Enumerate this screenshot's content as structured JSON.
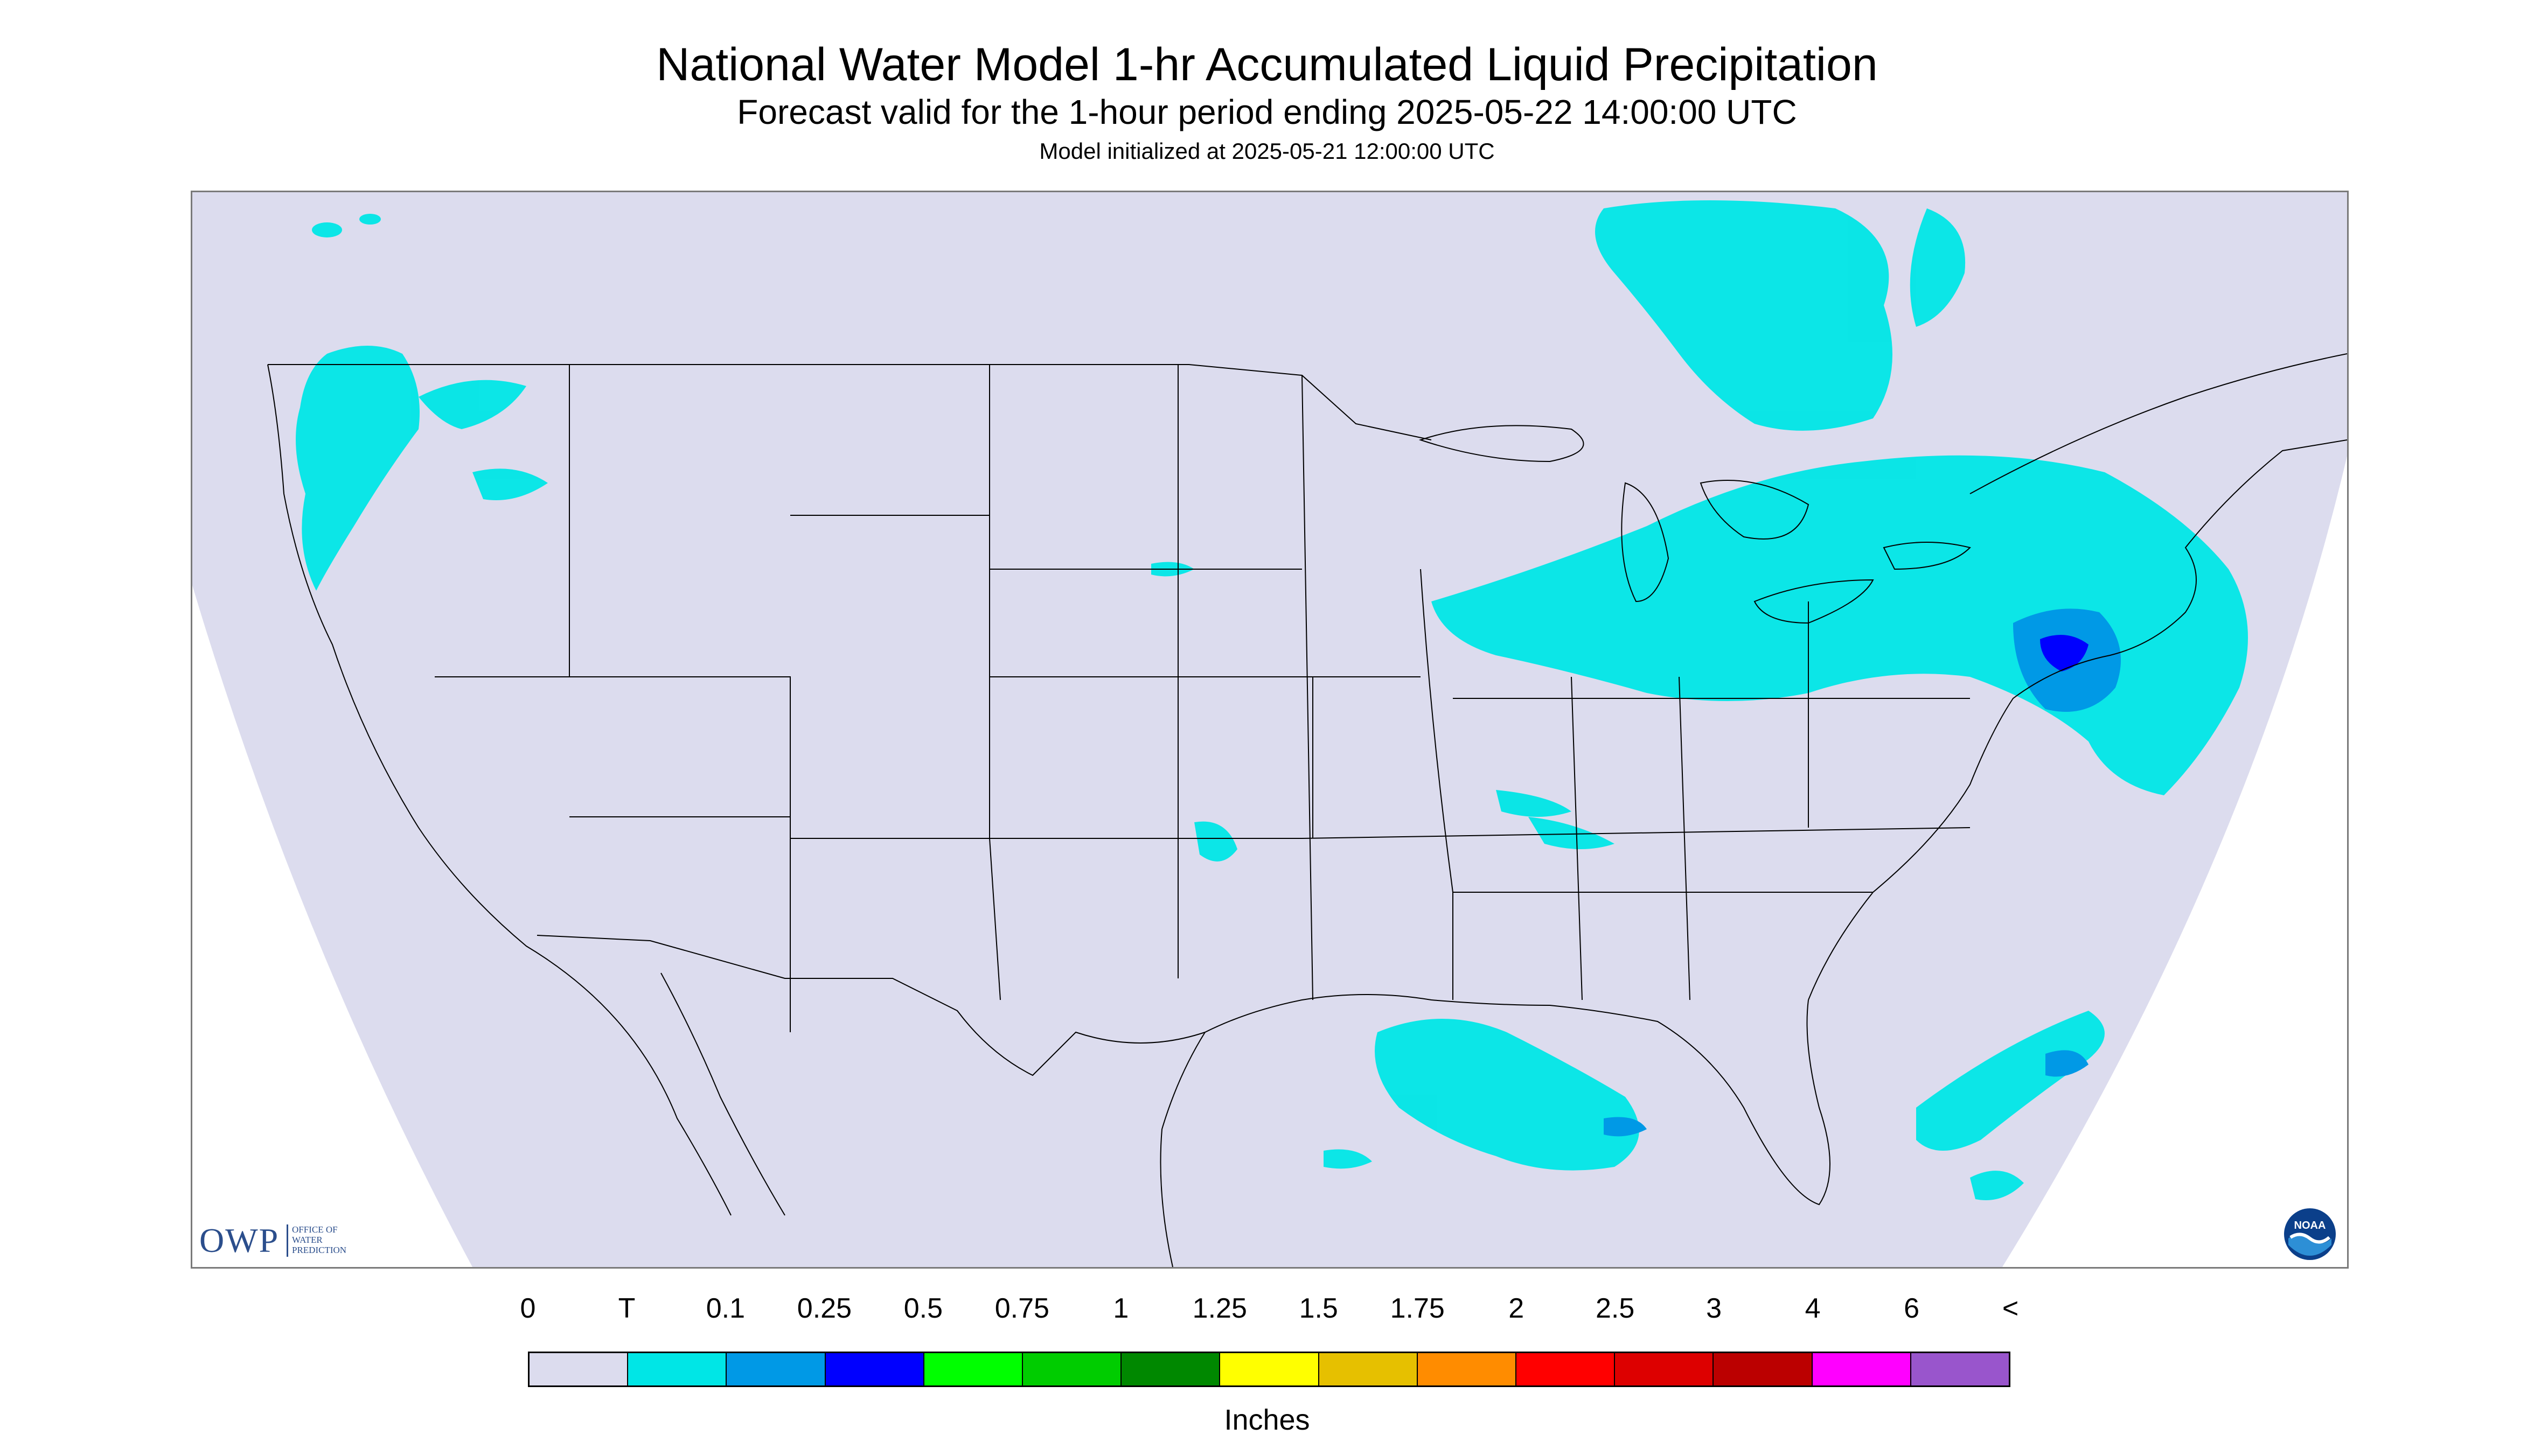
{
  "header": {
    "title": "National Water Model 1-hr Accumulated Liquid Precipitation",
    "subtitle": "Forecast valid for the 1-hour period ending 2025-05-22 14:00:00 UTC",
    "init": "Model initialized at 2025-05-21 12:00:00 UTC"
  },
  "map": {
    "projection": "conus-lambert-conformal",
    "background_color": "#dcdcee",
    "outside_color": "#ffffff",
    "boundary_color": "#000000",
    "precip_regions": [
      {
        "area": "Pacific Northwest",
        "class": "T"
      },
      {
        "area": "Upper Midwest / Ontario",
        "class": "T"
      },
      {
        "area": "Great Lakes / Ohio Valley",
        "class": "T"
      },
      {
        "area": "Mid-Atlantic / New England",
        "class": "0.1"
      },
      {
        "area": "New Jersey / Long Island",
        "class": "0.25"
      },
      {
        "area": "Gulf of Mexico",
        "class": "T"
      },
      {
        "area": "Western Atlantic",
        "class": "T"
      }
    ]
  },
  "logos": {
    "owp_mark": "OWP",
    "owp_text": [
      "OFFICE OF",
      "WATER",
      "PREDICTION"
    ],
    "noaa": "NOAA"
  },
  "legend": {
    "ticks": [
      "0",
      "T",
      "0.1",
      "0.25",
      "0.5",
      "0.75",
      "1",
      "1.25",
      "1.5",
      "1.75",
      "2",
      "2.5",
      "3",
      "4",
      "6",
      "<"
    ],
    "colors": [
      "#dcdcee",
      "#00e6e6",
      "#0099e6",
      "#0000ff",
      "#00ff00",
      "#00cc00",
      "#008800",
      "#ffff00",
      "#e6c000",
      "#ff8c00",
      "#ff0000",
      "#dd0000",
      "#bb0000",
      "#ff00ff",
      "#9955cc"
    ],
    "units": "Inches"
  }
}
